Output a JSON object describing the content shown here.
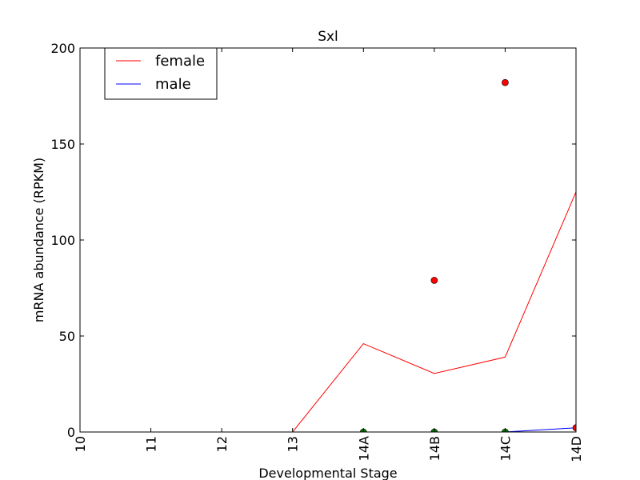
{
  "chart_data": {
    "type": "line",
    "title": "Sxl",
    "xlabel": "Developmental Stage",
    "ylabel": "mRNA abundance (RPKM)",
    "categories": [
      "10",
      "11",
      "12",
      "13",
      "14A",
      "14B",
      "14C",
      "14D"
    ],
    "ylim": [
      0,
      200
    ],
    "yticks": [
      0,
      50,
      100,
      150,
      200
    ],
    "grid": false,
    "legend_position": "top-left",
    "series": [
      {
        "name": "female",
        "color": "#ff0000",
        "values": [
          0,
          0,
          0,
          0,
          46,
          30.5,
          39,
          125
        ]
      },
      {
        "name": "male",
        "color": "#0000ff",
        "values": [
          0,
          0,
          0,
          0,
          0,
          0,
          0,
          2.2
        ]
      }
    ],
    "points": [
      {
        "category": "14A",
        "value": 0,
        "color": "#008000"
      },
      {
        "category": "14B",
        "value": 0,
        "color": "#008000"
      },
      {
        "category": "14C",
        "value": 0,
        "color": "#008000"
      },
      {
        "category": "14B",
        "value": 79,
        "color": "#ff0000"
      },
      {
        "category": "14C",
        "value": 182,
        "color": "#ff0000"
      },
      {
        "category": "14D",
        "value": 2.2,
        "color": "#ff0000"
      }
    ]
  }
}
